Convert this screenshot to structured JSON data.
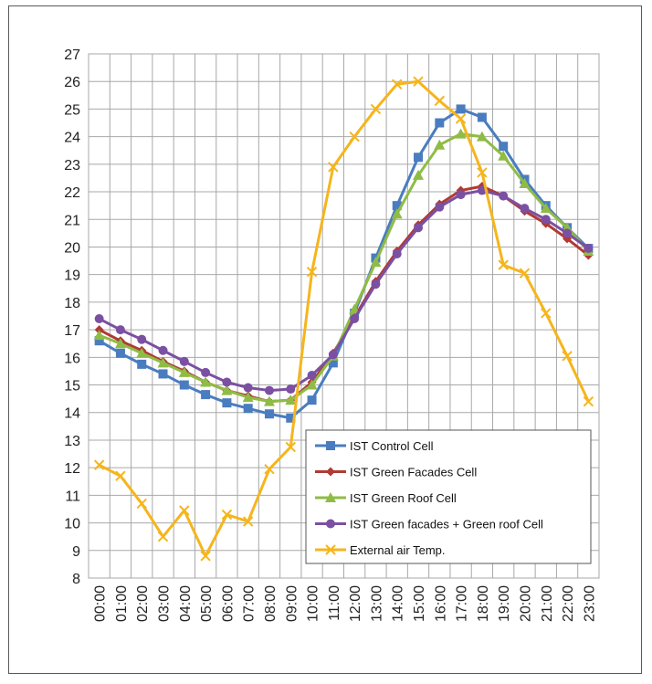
{
  "chart_data": {
    "type": "line",
    "title": "",
    "xlabel": "",
    "ylabel": "",
    "categories": [
      "00:00",
      "01:00",
      "02:00",
      "03:00",
      "04:00",
      "05:00",
      "06:00",
      "07:00",
      "08:00",
      "09:00",
      "10:00",
      "11:00",
      "12:00",
      "13:00",
      "14:00",
      "15:00",
      "16:00",
      "17:00",
      "18:00",
      "19:00",
      "20:00",
      "21:00",
      "22:00",
      "23:00"
    ],
    "ylim": [
      8,
      27
    ],
    "yticks": [
      "8",
      "9",
      "10",
      "11",
      "12",
      "13",
      "14",
      "15",
      "16",
      "17",
      "18",
      "19",
      "20",
      "21",
      "22",
      "23",
      "24",
      "25",
      "26",
      "27"
    ],
    "grid": true,
    "legend_position": "bottom-right",
    "series": [
      {
        "name": "IST  Control Cell",
        "color": "#4a7cc0",
        "marker": "square",
        "values": [
          16.6,
          16.15,
          15.75,
          15.4,
          15.0,
          14.65,
          14.35,
          14.15,
          13.95,
          13.8,
          14.45,
          15.8,
          17.6,
          19.6,
          21.5,
          23.25,
          24.5,
          25.0,
          24.7,
          23.65,
          22.45,
          21.5,
          20.7,
          19.95
        ]
      },
      {
        "name": "IST Green Facades Cell",
        "color": "#b03a34",
        "marker": "diamond",
        "values": [
          17.0,
          16.6,
          16.25,
          15.85,
          15.5,
          15.1,
          14.8,
          14.6,
          14.4,
          14.45,
          15.1,
          16.15,
          17.45,
          18.75,
          19.85,
          20.8,
          21.55,
          22.05,
          22.2,
          21.85,
          21.3,
          20.85,
          20.3,
          19.7
        ]
      },
      {
        "name": "IST Green Roof Cell",
        "color": "#8fbc45",
        "marker": "triangle",
        "values": [
          16.8,
          16.5,
          16.15,
          15.8,
          15.45,
          15.1,
          14.8,
          14.55,
          14.4,
          14.45,
          15.0,
          16.05,
          17.75,
          19.45,
          21.2,
          22.6,
          23.7,
          24.1,
          24.0,
          23.3,
          22.3,
          21.4,
          20.7,
          19.85
        ]
      },
      {
        "name": "IST Green facades + Green roof Cell",
        "color": "#7b50a2",
        "marker": "circle",
        "values": [
          17.4,
          17.0,
          16.65,
          16.25,
          15.85,
          15.45,
          15.1,
          14.9,
          14.8,
          14.85,
          15.35,
          16.1,
          17.4,
          18.65,
          19.75,
          20.7,
          21.45,
          21.9,
          22.05,
          21.85,
          21.4,
          21.0,
          20.5,
          19.95
        ]
      },
      {
        "name": "External air Temp.",
        "color": "#f5b51c",
        "marker": "x",
        "values": [
          12.1,
          11.7,
          10.7,
          9.5,
          10.45,
          8.8,
          10.3,
          10.05,
          11.95,
          12.75,
          19.1,
          22.9,
          24.0,
          25.0,
          25.9,
          26.0,
          25.3,
          24.65,
          22.7,
          19.35,
          19.05,
          17.6,
          16.05,
          14.4
        ]
      }
    ]
  }
}
